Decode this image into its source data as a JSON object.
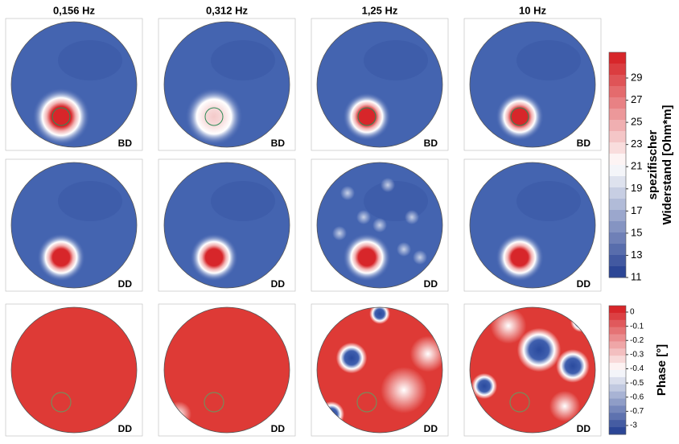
{
  "column_titles": [
    "0,156 Hz",
    "0,312 Hz",
    "1,25 Hz",
    "10 Hz"
  ],
  "panel_labels": [
    [
      "BD",
      "BD",
      "BD",
      "BD"
    ],
    [
      "DD",
      "DD",
      "DD",
      "DD"
    ],
    [
      "DD",
      "DD",
      "DD",
      "DD"
    ]
  ],
  "resistivity_colorbar": {
    "label_lines": [
      "spezifischer",
      "Widerstand [Ohm*m]"
    ],
    "ticks": [
      29,
      27,
      25,
      23,
      21,
      19,
      17,
      15,
      13,
      11
    ]
  },
  "phase_colorbar": {
    "label": "Phase [°]",
    "ticks": [
      0,
      -0.1,
      -0.2,
      -0.3,
      -0.4,
      -0.5,
      -0.6,
      -0.7,
      -3
    ]
  }
}
